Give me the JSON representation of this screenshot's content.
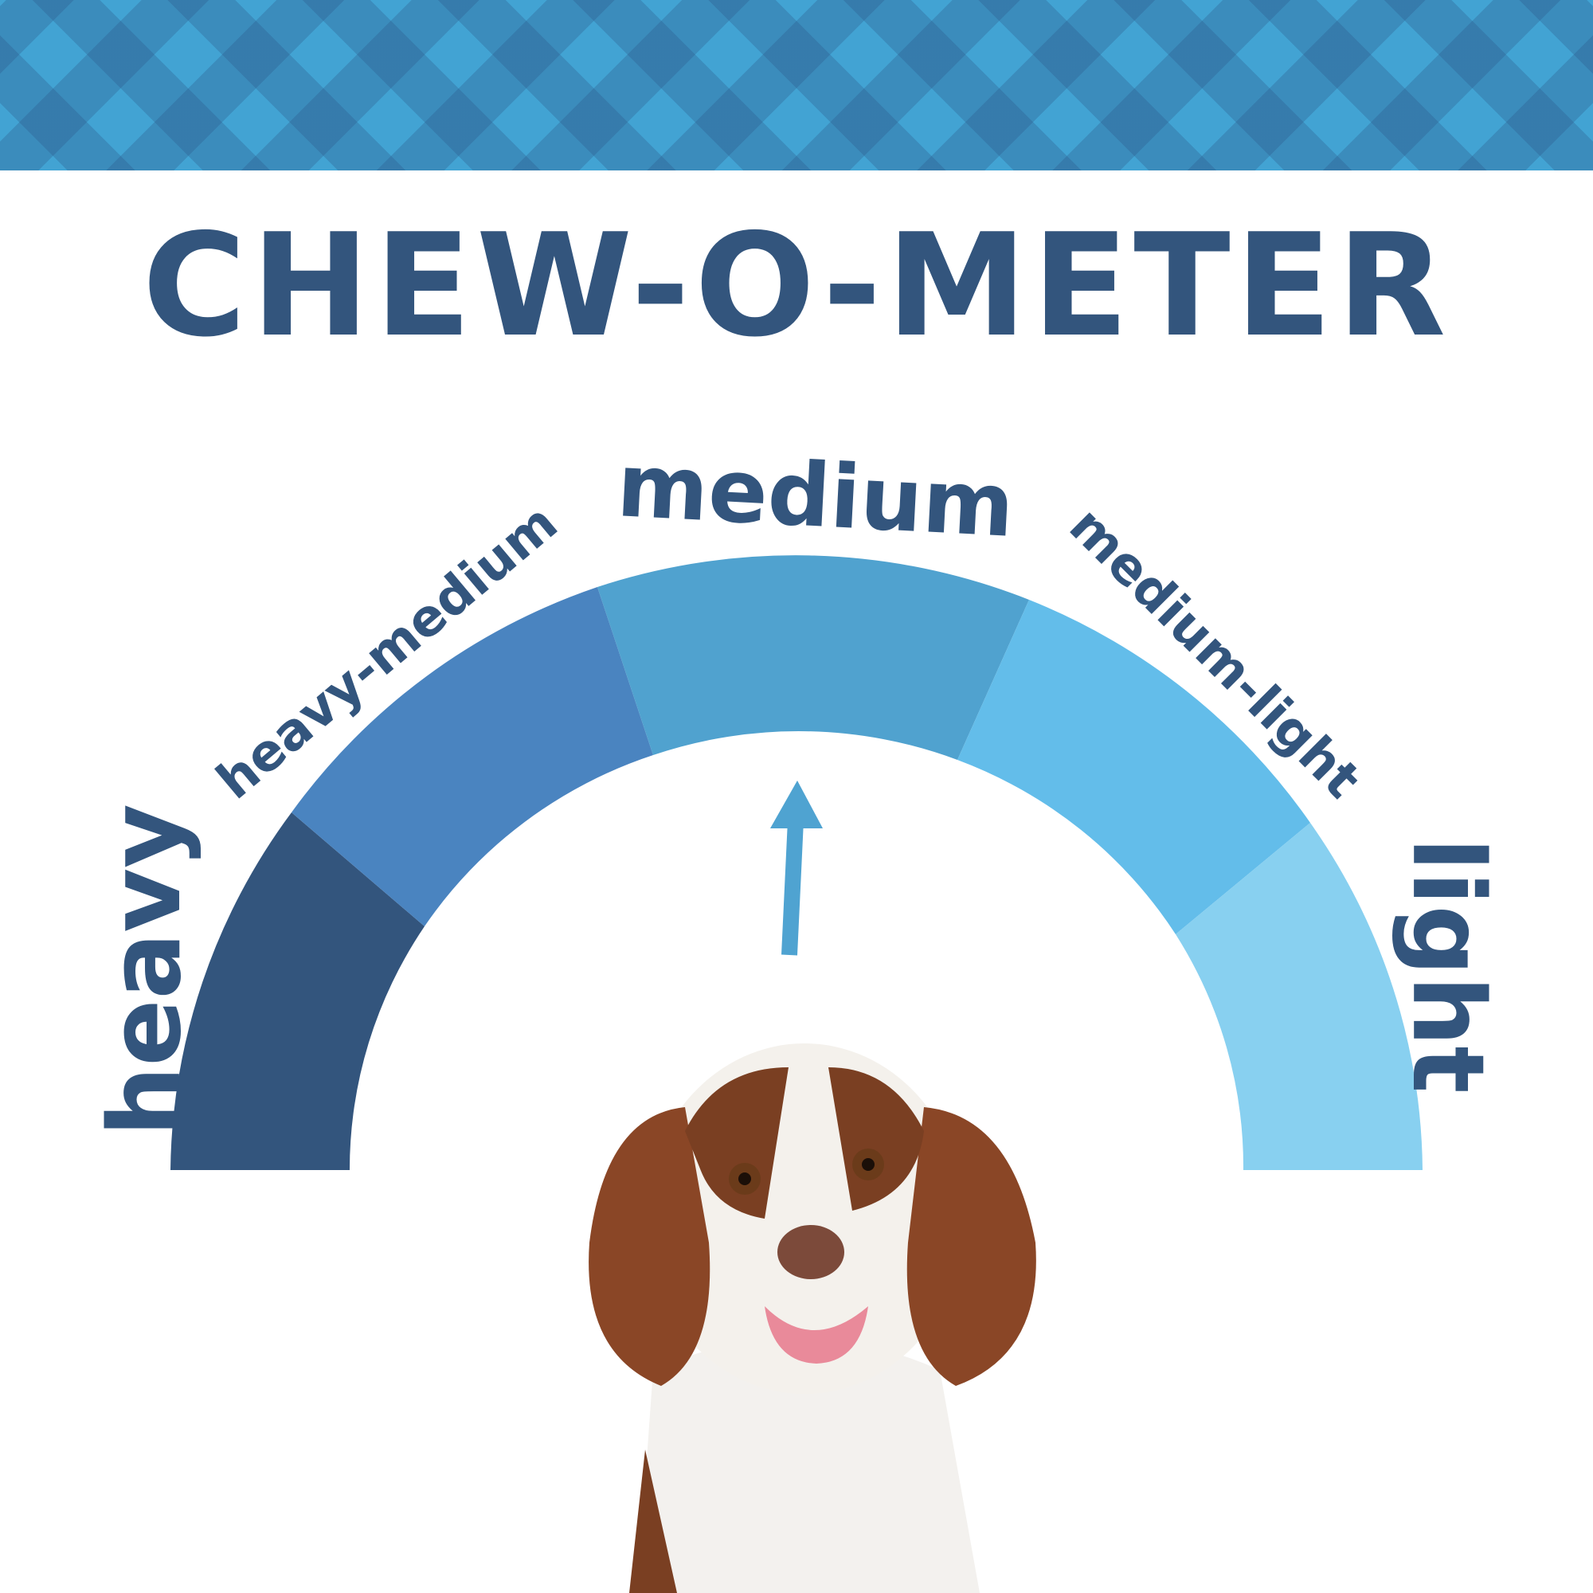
{
  "header": {
    "pattern": "blue-gingham",
    "colors": [
      "#42a3d3",
      "#4189b8",
      "#3a79a4"
    ]
  },
  "title": "CHEW-O-METER",
  "gauge": {
    "segments": [
      {
        "label": "heavy",
        "color": "#33557d"
      },
      {
        "label": "heavy-medium",
        "color": "#4a84c0"
      },
      {
        "label": "medium",
        "color": "#50a2cf"
      },
      {
        "label": "medium-light",
        "color": "#63bdea"
      },
      {
        "label": "light",
        "color": "#88d0f0"
      }
    ],
    "selected": "medium",
    "pointer_color": "#4fa3d1",
    "text_color": "#33557d"
  },
  "image": {
    "subject": "spaniel-puppy"
  }
}
